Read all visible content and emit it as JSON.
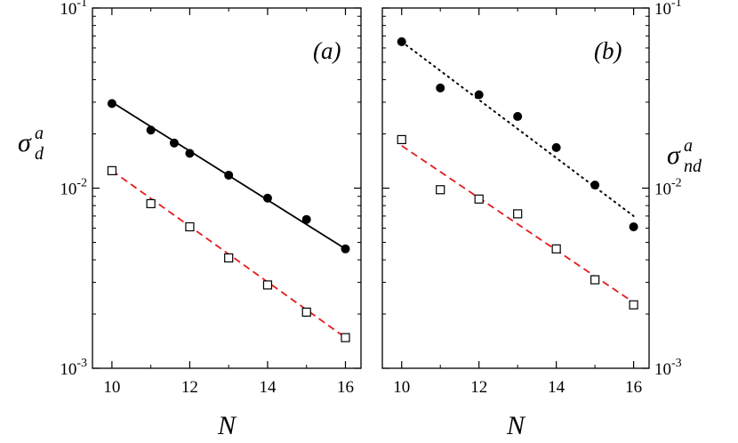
{
  "chart_data": [
    {
      "type": "scatter",
      "panel_label": "(a)",
      "xlabel": "N",
      "ylabel": {
        "symbol": "σ",
        "sup": "a",
        "sub": "d"
      },
      "xlim": [
        9.5,
        16.4
      ],
      "ylim": [
        0.001,
        0.1
      ],
      "yscale": "log",
      "xticks": [
        10,
        12,
        14,
        16
      ],
      "xtick_labels": [
        "10",
        "12",
        "14",
        "16"
      ],
      "yticks": [
        0.001,
        0.01,
        0.1
      ],
      "ytick_labels": [
        {
          "base": "10",
          "exp": "-3"
        },
        {
          "base": "10",
          "exp": "-2"
        },
        {
          "base": "10",
          "exp": "-1"
        }
      ],
      "ylabel_side": "left",
      "series": [
        {
          "name": "filled circles",
          "marker": "filled-circle",
          "color": "#000000",
          "x": [
            10,
            11,
            11.6,
            12,
            13,
            14,
            15,
            16
          ],
          "y": [
            0.0295,
            0.021,
            0.0178,
            0.0156,
            0.0118,
            0.0088,
            0.0067,
            0.0046
          ]
        },
        {
          "name": "open squares",
          "marker": "open-square",
          "color": "#000000",
          "x": [
            10,
            11,
            12,
            13,
            14,
            15,
            16
          ],
          "y": [
            0.0125,
            0.0082,
            0.0061,
            0.0041,
            0.0029,
            0.00205,
            0.00148
          ]
        }
      ],
      "fits": [
        {
          "style": "solid",
          "color": "#000000",
          "x": [
            10,
            16
          ],
          "y": [
            0.03,
            0.0046
          ]
        },
        {
          "style": "dashed",
          "color": "#e31a1c",
          "x": [
            10,
            16
          ],
          "y": [
            0.0125,
            0.00148
          ]
        }
      ]
    },
    {
      "type": "scatter",
      "panel_label": "(b)",
      "xlabel": "N",
      "ylabel": {
        "symbol": "σ",
        "sup": "a",
        "sub": "nd"
      },
      "xlim": [
        9.5,
        16.4
      ],
      "ylim": [
        0.001,
        0.1
      ],
      "yscale": "log",
      "xticks": [
        10,
        12,
        14,
        16
      ],
      "xtick_labels": [
        "10",
        "12",
        "14",
        "16"
      ],
      "yticks": [
        0.001,
        0.01,
        0.1
      ],
      "ytick_labels": [
        {
          "base": "10",
          "exp": "-3"
        },
        {
          "base": "10",
          "exp": "-2"
        },
        {
          "base": "10",
          "exp": "-1"
        }
      ],
      "ylabel_side": "right",
      "series": [
        {
          "name": "filled circles",
          "marker": "filled-circle",
          "color": "#000000",
          "x": [
            10,
            11,
            12,
            13,
            14,
            15,
            16
          ],
          "y": [
            0.065,
            0.036,
            0.033,
            0.025,
            0.0168,
            0.0104,
            0.0061
          ]
        },
        {
          "name": "open squares",
          "marker": "open-square",
          "color": "#000000",
          "x": [
            10,
            11,
            12,
            13,
            14,
            15,
            16
          ],
          "y": [
            0.0186,
            0.0098,
            0.0087,
            0.0072,
            0.0046,
            0.0031,
            0.00225
          ]
        }
      ],
      "fits": [
        {
          "style": "dotted",
          "color": "#000000",
          "x": [
            10,
            16
          ],
          "y": [
            0.065,
            0.007
          ]
        },
        {
          "style": "dashed",
          "color": "#e31a1c",
          "x": [
            10,
            16
          ],
          "y": [
            0.0172,
            0.00232
          ]
        }
      ]
    }
  ]
}
